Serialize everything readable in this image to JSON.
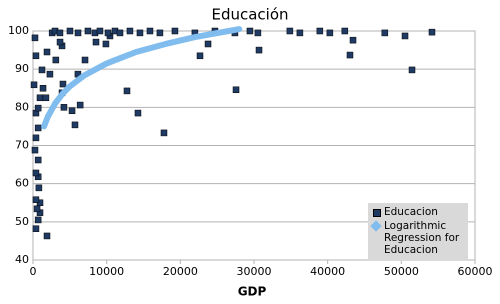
{
  "chart_data": {
    "type": "scatter",
    "title": "Educación",
    "x_label": "GDP",
    "xlim": [
      0,
      60000
    ],
    "xticks": [
      0,
      10000,
      20000,
      30000,
      40000,
      50000,
      60000
    ],
    "ylim": [
      40,
      100
    ],
    "yticks": [
      40,
      50,
      60,
      70,
      80,
      90,
      100
    ],
    "grid": true,
    "series": [
      {
        "name": "Educacion",
        "color": "#1f3a63",
        "type": "scatter",
        "x": [
          1900,
          400,
          700,
          950,
          550,
          950,
          400,
          800,
          700,
          400,
          700,
          270,
          400,
          700,
          400,
          700,
          950,
          1750,
          1360,
          140,
          2300,
          1220,
          3100,
          400,
          1900,
          3940,
          3670,
          270,
          2600,
          4070,
          4200,
          5300,
          5700,
          6400,
          3940,
          6100,
          7060,
          8550,
          9900,
          10450,
          12760,
          14250,
          17780,
          22670,
          23760,
          27560,
          30680,
          43030,
          43440,
          50500,
          51450,
          54160,
          2990,
          3660,
          5020,
          6110,
          7460,
          8410,
          9090,
          10180,
          11130,
          11810,
          13160,
          14520,
          15880,
          17230,
          19270,
          21980,
          24700,
          27410,
          29450,
          30530,
          34870,
          36230,
          38940,
          40300,
          42330,
          47760
        ],
        "values": [
          46.3,
          48.2,
          50.5,
          52.4,
          53.4,
          55,
          55.8,
          58.9,
          61.8,
          62.8,
          66.2,
          68.8,
          72,
          74.6,
          78.5,
          79.8,
          82.5,
          82.5,
          85,
          85.9,
          88.7,
          89.8,
          92.4,
          93.5,
          94.5,
          96.1,
          97.1,
          98.2,
          99.5,
          86.1,
          80,
          79.1,
          75.4,
          80.6,
          83.8,
          88.7,
          92.4,
          97.1,
          96.6,
          98.7,
          84.3,
          78.5,
          73.3,
          93.5,
          96.6,
          84.6,
          95,
          93.7,
          97.6,
          98.7,
          89.8,
          99.7,
          100,
          99.5,
          100,
          99.5,
          100,
          99.5,
          100,
          99.5,
          100,
          99.5,
          100,
          99.5,
          100,
          99.5,
          100,
          99.5,
          100,
          99.5,
          100,
          99.5,
          100,
          99.5,
          100,
          99.5,
          100,
          99.5
        ]
      },
      {
        "name": "Logarithmic Regression for Educacion",
        "color": "#80bdee",
        "type": "line",
        "x": [
          1500,
          2000,
          3000,
          4000,
          5000,
          7000,
          10000,
          14000,
          18000,
          22000,
          26000,
          28000
        ],
        "values": [
          75.0,
          77.5,
          81.0,
          83.5,
          85.5,
          88.4,
          91.5,
          94.5,
          96.6,
          98.4,
          99.8,
          100.5
        ]
      }
    ]
  }
}
